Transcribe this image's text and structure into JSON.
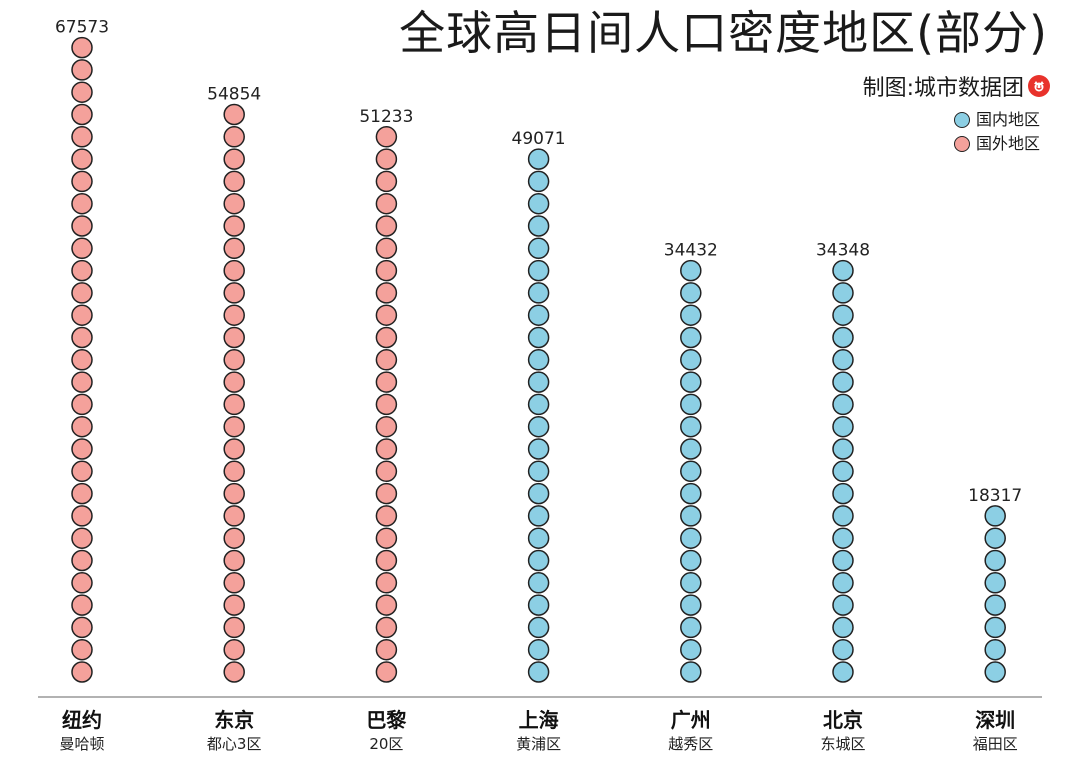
{
  "title": "全球高日间人口密度地区(部分)",
  "credit": {
    "label": "制图:城市数据团",
    "logo_icon": "city-data-team-logo-icon"
  },
  "legend": [
    {
      "label": "国内地区",
      "color": "#8ccfe4"
    },
    {
      "label": "国外地区",
      "color": "#f4a19b"
    }
  ],
  "chart_data": {
    "type": "bar",
    "style": "stacked-dot-columns",
    "categories": [
      "纽约",
      "东京",
      "巴黎",
      "上海",
      "广州",
      "北京",
      "深圳"
    ],
    "subtitles": [
      "曼哈顿",
      "都心3区",
      "20区",
      "黄浦区",
      "越秀区",
      "东城区",
      "福田区"
    ],
    "values": [
      67573,
      54854,
      51233,
      49071,
      34432,
      34348,
      18317
    ],
    "groups": [
      "国外地区",
      "国外地区",
      "国外地区",
      "国内地区",
      "国内地区",
      "国内地区",
      "国内地区"
    ],
    "dots": [
      29,
      26,
      25,
      24,
      19,
      19,
      8
    ],
    "title": "全球高日间人口密度地区(部分)",
    "xlabel": "",
    "ylabel": "",
    "grid": false,
    "legend_position": "top-right"
  }
}
